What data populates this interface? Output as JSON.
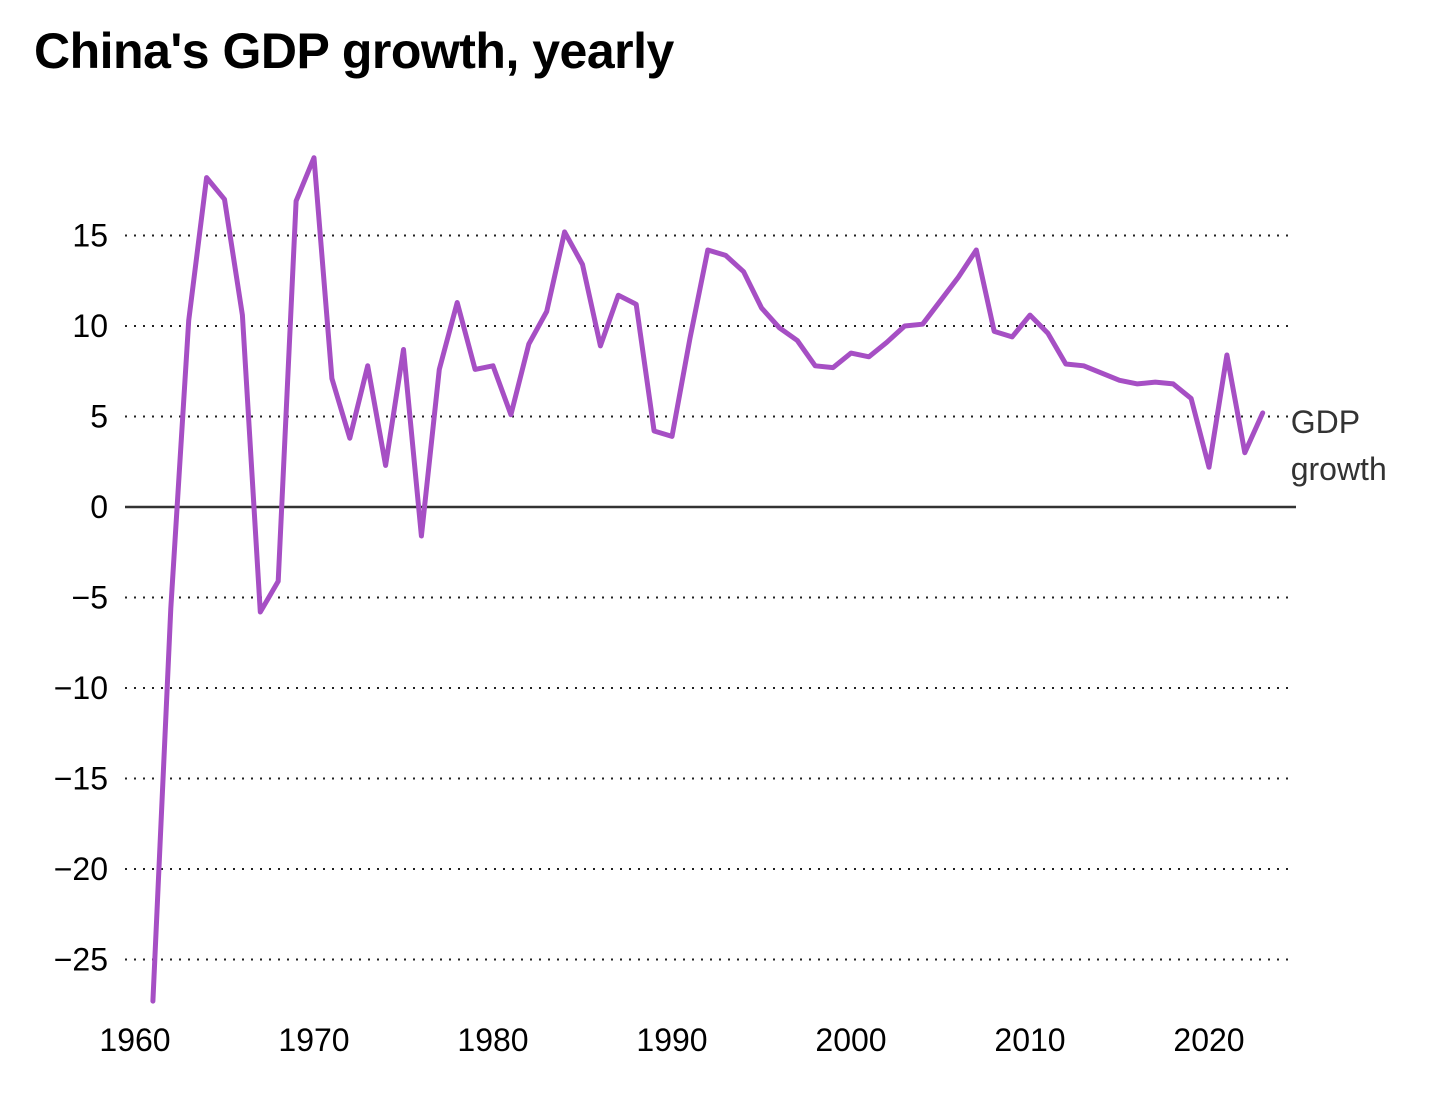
{
  "chart_data": {
    "type": "line",
    "title": "China's GDP growth, yearly",
    "xlabel": "",
    "ylabel": "",
    "xlim": [
      1960,
      2024
    ],
    "ylim": [
      -28,
      20
    ],
    "grid": true,
    "legend": "inline-right",
    "x_ticks": [
      1960,
      1970,
      1980,
      1990,
      2000,
      2010,
      2020
    ],
    "y_ticks": [
      15,
      10,
      5,
      0,
      -5,
      -10,
      -15,
      -20,
      -25
    ],
    "y_tick_labels": [
      "15",
      "10",
      "5",
      "0",
      "−5",
      "−10",
      "−15",
      "−20",
      "−25"
    ],
    "x_tick_labels": [
      "1960",
      "1970",
      "1980",
      "1990",
      "2000",
      "2010",
      "2020"
    ],
    "series": [
      {
        "name": "GDP growth",
        "label_lines": [
          "GDP",
          "growth"
        ],
        "color": "#a64fc4",
        "x": [
          1961,
          1962,
          1963,
          1964,
          1965,
          1966,
          1967,
          1968,
          1969,
          1970,
          1971,
          1972,
          1973,
          1974,
          1975,
          1976,
          1977,
          1978,
          1979,
          1980,
          1981,
          1982,
          1983,
          1984,
          1985,
          1986,
          1987,
          1988,
          1989,
          1990,
          1991,
          1992,
          1993,
          1994,
          1995,
          1996,
          1997,
          1998,
          1999,
          2000,
          2001,
          2002,
          2003,
          2004,
          2005,
          2006,
          2007,
          2008,
          2009,
          2010,
          2011,
          2012,
          2013,
          2014,
          2015,
          2016,
          2017,
          2018,
          2019,
          2020,
          2021,
          2022,
          2023
        ],
        "values": [
          -27.3,
          -5.6,
          10.3,
          18.2,
          17.0,
          10.6,
          -5.8,
          -4.1,
          16.9,
          19.3,
          7.1,
          3.8,
          7.8,
          2.3,
          8.7,
          -1.6,
          7.6,
          11.3,
          7.6,
          7.8,
          5.1,
          9.0,
          10.8,
          15.2,
          13.4,
          8.9,
          11.7,
          11.2,
          4.2,
          3.9,
          9.3,
          14.2,
          13.9,
          13.0,
          11.0,
          9.9,
          9.2,
          7.8,
          7.7,
          8.5,
          8.3,
          9.1,
          10.0,
          10.1,
          11.4,
          12.7,
          14.2,
          9.7,
          9.4,
          10.6,
          9.6,
          7.9,
          7.8,
          7.4,
          7.0,
          6.8,
          6.9,
          6.8,
          6.0,
          2.2,
          8.4,
          3.0,
          5.2
        ]
      }
    ]
  }
}
